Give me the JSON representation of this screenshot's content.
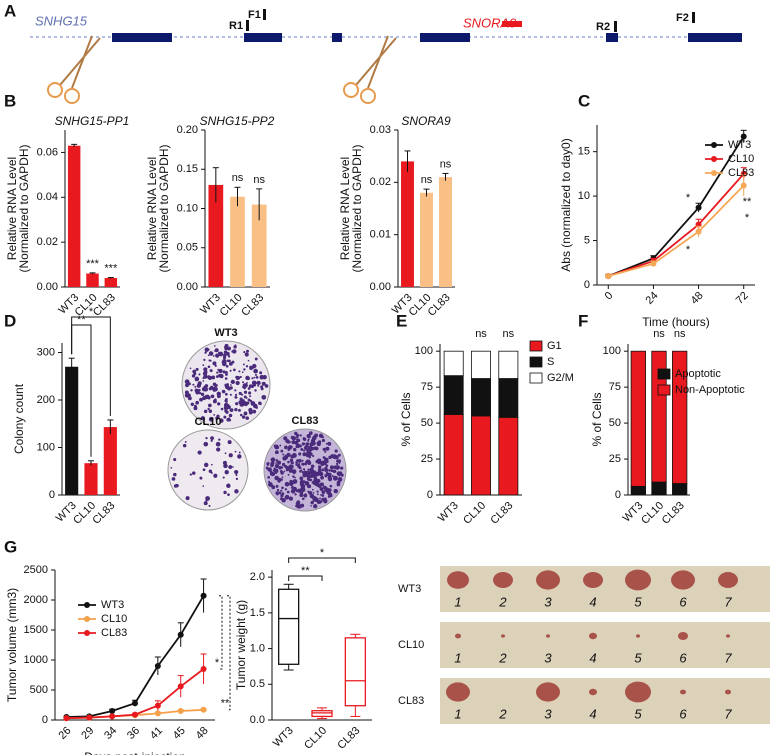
{
  "panel_labels": [
    "A",
    "B",
    "C",
    "D",
    "E",
    "F",
    "G"
  ],
  "gene_diagram": {
    "gene": "SNHG15",
    "snorna": "SNORA9",
    "primers": [
      "R1",
      "F1",
      "R2",
      "F2"
    ]
  },
  "colony_photos": {
    "labels": [
      "WT3",
      "CL10",
      "CL83"
    ]
  },
  "tumor_photos": {
    "rows": [
      "WT3",
      "CL10",
      "CL83"
    ],
    "numbers": [
      "1",
      "2",
      "3",
      "4",
      "5",
      "6",
      "7"
    ]
  },
  "chart_data": [
    {
      "type": "bar",
      "title": "SNHG15-PP1",
      "ylabel": [
        "Relative RNA Level",
        "(Normalized to GAPDH)"
      ],
      "categories": [
        "WT3",
        "CL10",
        "CL83"
      ],
      "values": [
        0.063,
        0.006,
        0.004
      ],
      "errors": [
        0.0006,
        0.0003,
        0.0002
      ],
      "colors": [
        "#e8191f",
        "#e8191f",
        "#e8191f"
      ],
      "bar_labels": [
        null,
        "***",
        "***"
      ],
      "ylim": [
        0,
        0.07
      ],
      "yticks": [
        {
          "value": 0,
          "label": "0.00"
        },
        0.02,
        0.04,
        0.06
      ]
    },
    {
      "type": "bar",
      "title": "SNHG15-PP2",
      "ylabel": [
        "Relative RNA Level",
        "(Normalized to GAPDH)"
      ],
      "categories": [
        "WT3",
        "CL10",
        "CL83"
      ],
      "values": [
        0.13,
        0.115,
        0.105
      ],
      "errors": [
        0.022,
        0.012,
        0.02
      ],
      "colors": [
        "#e8191f",
        "#f9bf85",
        "#f9bf85"
      ],
      "bar_labels": [
        null,
        "ns",
        "ns"
      ],
      "ylim": [
        0,
        0.2
      ],
      "yticks": [
        {
          "value": 0,
          "label": "0.00"
        },
        0.05,
        {
          "value": 0.1,
          "label": "0.10"
        },
        {
          "value": 0.15,
          "label": "0.15"
        },
        {
          "value": 0.2,
          "label": "0.20"
        }
      ]
    },
    {
      "type": "bar",
      "title": "SNORA9",
      "ylabel": [
        "Relative RNA Level",
        "(Normalized to GAPDH)"
      ],
      "categories": [
        "WT3",
        "CL10",
        "CL83"
      ],
      "values": [
        0.024,
        0.018,
        0.021
      ],
      "errors": [
        0.002,
        0.0007,
        0.0007
      ],
      "colors": [
        "#e8191f",
        "#f9bf85",
        "#f9bf85"
      ],
      "bar_labels": [
        null,
        "ns",
        "ns"
      ],
      "ylim": [
        0,
        0.03
      ],
      "yticks": [
        {
          "value": 0,
          "label": "0.00"
        },
        0.01,
        0.02,
        0.03
      ]
    },
    {
      "type": "line",
      "ylabel": "Abs (normalized to day0)",
      "xlabel": "Time (hours)",
      "x": [
        0,
        24,
        48,
        72
      ],
      "xlim": [
        -6,
        78
      ],
      "xticks": [
        0,
        24,
        48,
        72
      ],
      "ylim": [
        0,
        18
      ],
      "yticks": [
        0,
        5,
        10,
        15
      ],
      "series": [
        {
          "name": "WT3",
          "color": "#111111",
          "values": [
            1,
            3,
            8.7,
            16.7
          ],
          "errors": [
            0.2,
            0.3,
            0.5,
            0.7
          ]
        },
        {
          "name": "CL10",
          "color": "#e8191f",
          "values": [
            1,
            2.7,
            6.8,
            12.5
          ],
          "errors": [
            0.2,
            0.3,
            0.6,
            0.7
          ]
        },
        {
          "name": "CL83",
          "color": "#f5a857",
          "values": [
            1,
            2.4,
            6,
            11.2
          ],
          "errors": [
            0.2,
            0.3,
            0.6,
            1.2
          ]
        }
      ],
      "annotations": [
        "*",
        "*",
        "**",
        "*"
      ]
    },
    {
      "type": "bar",
      "ylabel": "Colony count",
      "categories": [
        "WT3",
        "CL10",
        "CL83"
      ],
      "values": [
        270,
        67,
        143
      ],
      "errors": [
        18,
        5,
        15
      ],
      "colors": [
        "#111111",
        "#e8191f",
        "#e8191f"
      ],
      "significance": [
        null,
        "**",
        "*"
      ],
      "ylim": [
        0,
        320
      ],
      "yticks": [
        0,
        100,
        200,
        300
      ]
    },
    {
      "type": "stacked_bar",
      "ylabel": "% of Cells",
      "categories": [
        "WT3",
        "CL10",
        "CL83"
      ],
      "series": [
        {
          "name": "G1",
          "color": "#e8191f",
          "values": [
            56,
            55,
            54
          ]
        },
        {
          "name": "S",
          "color": "#111111",
          "values": [
            27,
            26,
            27
          ]
        },
        {
          "name": "G2/M",
          "color": "#ffffff",
          "values": [
            17,
            19,
            19
          ]
        }
      ],
      "bar_labels": [
        null,
        "ns",
        "ns"
      ],
      "ylim": [
        0,
        105
      ],
      "yticks": [
        0,
        25,
        50,
        75,
        100
      ]
    },
    {
      "type": "stacked_bar",
      "ylabel": "% of Cells",
      "categories": [
        "WT3",
        "CL10",
        "CL83"
      ],
      "series": [
        {
          "name": "Apoptotic",
          "color": "#111111",
          "values": [
            6,
            9,
            8
          ]
        },
        {
          "name": "Non-Apoptotic",
          "color": "#e8191f",
          "values": [
            94,
            91,
            92
          ]
        }
      ],
      "bar_labels": [
        null,
        "ns",
        "ns"
      ],
      "ylim": [
        0,
        105
      ],
      "yticks": [
        0,
        25,
        50,
        75,
        100
      ]
    },
    {
      "type": "line",
      "ylabel": "Tumor volume (mm3)",
      "xlabel": "Days post-injection",
      "categories": [
        "26",
        "29",
        "34",
        "36",
        "41",
        "45",
        "48"
      ],
      "ylim": [
        0,
        2500
      ],
      "yticks": [
        0,
        500,
        1000,
        1500,
        2000,
        2500
      ],
      "series": [
        {
          "name": "WT3",
          "color": "#111111",
          "values": [
            50,
            60,
            150,
            280,
            900,
            1420,
            2070
          ],
          "errors": [
            10,
            10,
            30,
            50,
            150,
            200,
            280
          ]
        },
        {
          "name": "CL10",
          "color": "#f5a04a",
          "values": [
            30,
            40,
            60,
            80,
            110,
            150,
            170
          ],
          "errors": [
            5,
            5,
            10,
            10,
            20,
            20,
            20
          ]
        },
        {
          "name": "CL83",
          "color": "#e8191f",
          "values": [
            30,
            40,
            60,
            90,
            240,
            560,
            850
          ],
          "errors": [
            5,
            5,
            10,
            20,
            80,
            180,
            250
          ]
        }
      ],
      "annotations": [
        "*",
        "**"
      ]
    },
    {
      "type": "box",
      "ylabel": "Tumor weight (g)",
      "categories": [
        "WT3",
        "CL10",
        "CL83"
      ],
      "min": [
        0.7,
        0.02,
        0.05
      ],
      "q1": [
        0.78,
        0.05,
        0.2
      ],
      "median": [
        1.42,
        0.1,
        0.55
      ],
      "q3": [
        1.83,
        0.13,
        1.15
      ],
      "max": [
        1.9,
        0.17,
        1.2
      ],
      "colors": [
        "#111111",
        "#e8191f",
        "#e8191f"
      ],
      "significance": [
        null,
        "**",
        "*"
      ],
      "ylim": [
        0,
        2.1
      ],
      "yticks": [
        {
          "value": 0,
          "label": "0.0"
        },
        0.5,
        {
          "value": 1,
          "label": "1.0"
        },
        1.5,
        {
          "value": 2,
          "label": "2.0"
        }
      ]
    }
  ]
}
